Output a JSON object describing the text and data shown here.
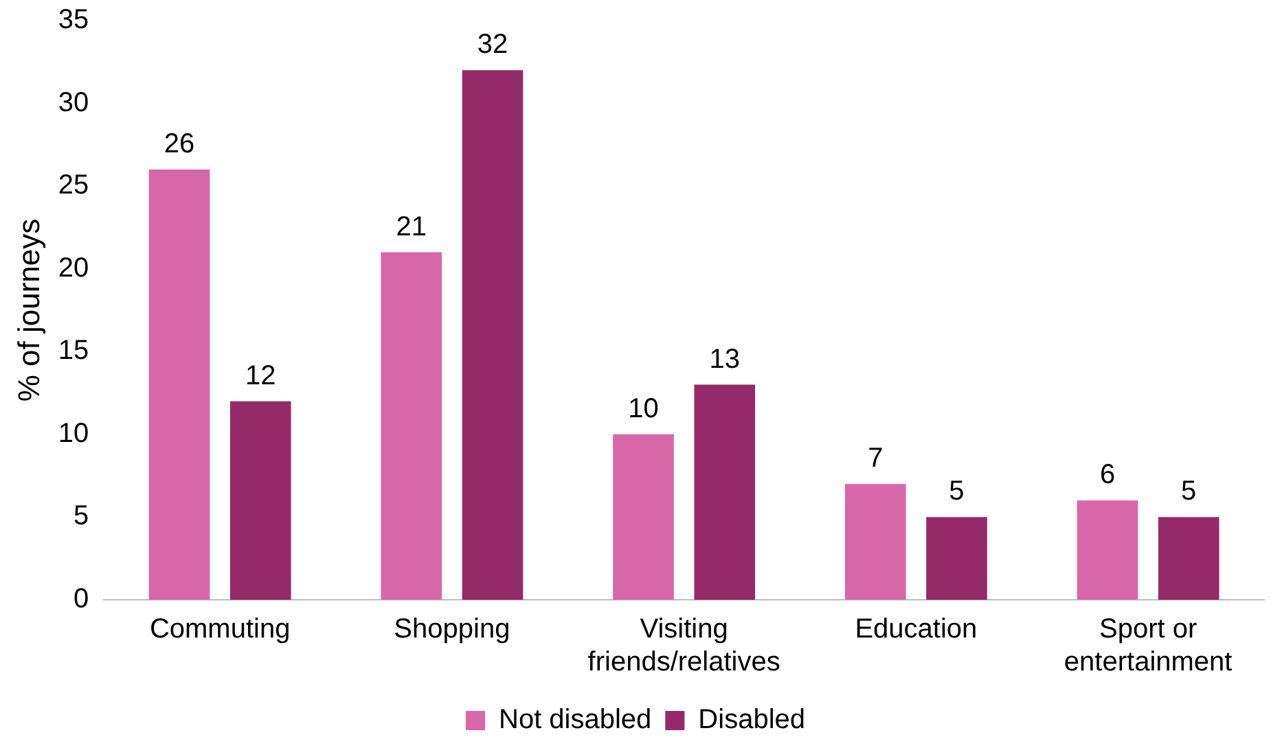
{
  "chart_data": {
    "type": "bar",
    "ylabel": "% of journeys",
    "categories": [
      "Commuting",
      "Shopping",
      "Visiting friends/relatives",
      "Education",
      "Sport or entertainment"
    ],
    "series": [
      {
        "name": "Not disabled",
        "color": "#d867a8",
        "values": [
          26,
          21,
          10,
          7,
          6
        ]
      },
      {
        "name": "Disabled",
        "color": "#952a68",
        "values": [
          12,
          32,
          13,
          5,
          5
        ]
      }
    ],
    "ylim": [
      0,
      35
    ],
    "yticks": [
      0,
      5,
      10,
      15,
      20,
      25,
      30,
      35
    ],
    "grid": false,
    "legend": "bottom",
    "data_labels": true
  }
}
